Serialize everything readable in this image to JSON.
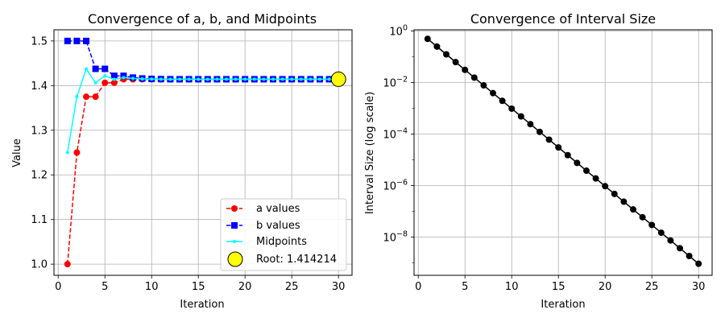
{
  "chart_data": [
    {
      "type": "line",
      "title": "Convergence of a, b, and Midpoints",
      "xlabel": "Iteration",
      "ylabel": "Value",
      "xlim": [
        -0.45,
        31.45
      ],
      "ylim": [
        0.975,
        1.525
      ],
      "xticks": [
        0,
        5,
        10,
        15,
        20,
        25,
        30
      ],
      "xtick_labels": [
        "0",
        "5",
        "10",
        "15",
        "20",
        "25",
        "30"
      ],
      "yticks": [
        1.0,
        1.1,
        1.2,
        1.3,
        1.4,
        1.5
      ],
      "ytick_labels": [
        "1.0",
        "1.1",
        "1.2",
        "1.3",
        "1.4",
        "1.5"
      ],
      "grid": true,
      "legend_position": "lower-right",
      "x": [
        1,
        2,
        3,
        4,
        5,
        6,
        7,
        8,
        9,
        10,
        11,
        12,
        13,
        14,
        15,
        16,
        17,
        18,
        19,
        20,
        21,
        22,
        23,
        24,
        25,
        26,
        27,
        28,
        29,
        30
      ],
      "series": [
        {
          "name": "a values",
          "color": "#ff0000",
          "marker": "circle",
          "linestyle": "dashed",
          "values": [
            1.0,
            1.25,
            1.375,
            1.375,
            1.40625,
            1.40625,
            1.4140625,
            1.4140625,
            1.4140625,
            1.4140625,
            1.4140625,
            1.4140625,
            1.4140625,
            1.4141845703,
            1.4141845703,
            1.4141845703,
            1.4141998291,
            1.4141998291,
            1.4142112732,
            1.4142131805,
            1.4142131805,
            1.4142131805,
            1.414213419,
            1.4142135382,
            1.4142135382,
            1.4142135382,
            1.4142135382,
            1.4142135531,
            1.4142135605,
            1.4142135605
          ]
        },
        {
          "name": "b values",
          "color": "#0000ff",
          "marker": "square",
          "linestyle": "dashed",
          "values": [
            1.5,
            1.5,
            1.5,
            1.4375,
            1.4375,
            1.421875,
            1.421875,
            1.41796875,
            1.416015625,
            1.4150390625,
            1.41455078125,
            1.414306640625,
            1.4141845703,
            1.4142456055,
            1.4142150879,
            1.4142150879,
            1.4142150879,
            1.4142150879,
            1.4142150879,
            1.4142150879,
            1.4142141342,
            1.4142136574,
            1.4142136574,
            1.4142136574,
            1.4142135978,
            1.414213568,
            1.4142135531,
            1.4142135531,
            1.4142135531,
            1.4142135568
          ]
        },
        {
          "name": "Midpoints",
          "color": "#00ffff",
          "marker": "point",
          "linestyle": "solid",
          "values": [
            1.25,
            1.375,
            1.4375,
            1.40625,
            1.421875,
            1.4140625,
            1.41796875,
            1.416015625,
            1.4150390625,
            1.41455078125,
            1.414306640625,
            1.4141845703,
            1.4142456055,
            1.4142150879,
            1.4141998291,
            1.4142074585,
            1.4142112732,
            1.4142131805,
            1.4142141342,
            1.4142136574,
            1.414213419,
            1.4142135382,
            1.4142135978,
            1.414213568,
            1.4142135531,
            1.4142135605,
            1.4142135568,
            1.4142135587,
            1.4142135596,
            1.4142135587
          ]
        }
      ],
      "root_marker": {
        "label": "Root: 1.414214",
        "x": 30,
        "y": 1.414214,
        "face_color": "#ffff00",
        "edge_color": "#000000"
      }
    },
    {
      "type": "line",
      "title": "Convergence of Interval Size",
      "xlabel": "Iteration",
      "ylabel": "Interval Size (log scale)",
      "yscale": "log",
      "xlim": [
        -0.45,
        31.45
      ],
      "ylim_log10": [
        -9.48,
        0.05
      ],
      "xticks": [
        0,
        5,
        10,
        15,
        20,
        25,
        30
      ],
      "xtick_labels": [
        "0",
        "5",
        "10",
        "15",
        "20",
        "25",
        "30"
      ],
      "yticks_log10": [
        0,
        -2,
        -4,
        -6,
        -8
      ],
      "ytick_labels": [
        "10^0",
        "10^-2",
        "10^-4",
        "10^-6",
        "10^-8"
      ],
      "grid": true,
      "x": [
        1,
        2,
        3,
        4,
        5,
        6,
        7,
        8,
        9,
        10,
        11,
        12,
        13,
        14,
        15,
        16,
        17,
        18,
        19,
        20,
        21,
        22,
        23,
        24,
        25,
        26,
        27,
        28,
        29,
        30
      ],
      "series": [
        {
          "color": "#000000",
          "marker": "circle",
          "linestyle": "solid",
          "values": [
            0.5,
            0.25,
            0.125,
            0.0625,
            0.03125,
            0.015625,
            0.0078125,
            0.00390625,
            0.001953125,
            0.0009765625,
            0.00048828125,
            0.000244140625,
            0.0001220703125,
            6.103515625e-05,
            3.0517578125e-05,
            1.52587890625e-05,
            7.62939453125e-06,
            3.814697265625e-06,
            1.9073486328125e-06,
            9.5367431640625e-07,
            4.76837158203125e-07,
            2.384185791015625e-07,
            1.1920928955078125e-07,
            5.960464477539063e-08,
            2.9802322387695312e-08,
            1.4901161193847656e-08,
            7.450580596923828e-09,
            3.725290298461914e-09,
            1.862645149230957e-09,
            9.313225746154785e-10
          ]
        }
      ]
    }
  ]
}
